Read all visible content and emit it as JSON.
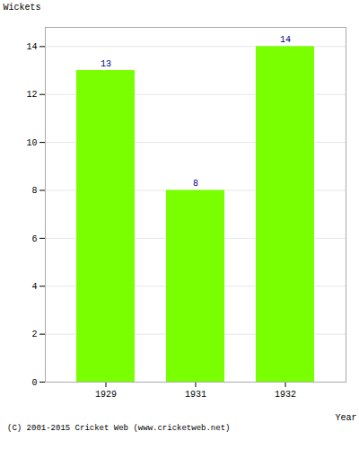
{
  "chart_data": {
    "type": "bar",
    "categories": [
      "1929",
      "1931",
      "1932"
    ],
    "values": [
      13,
      8,
      14
    ],
    "color": "#7aff00",
    "xlabel": "Year",
    "ylabel": "Wickets",
    "ylim": [
      0,
      14.8
    ],
    "yticks": [
      0,
      2,
      4,
      6,
      8,
      10,
      12,
      14
    ],
    "grid": true,
    "data_labels": true,
    "annotations": [
      "(C) 2001-2015 Cricket Web (www.cricketweb.net)"
    ]
  }
}
